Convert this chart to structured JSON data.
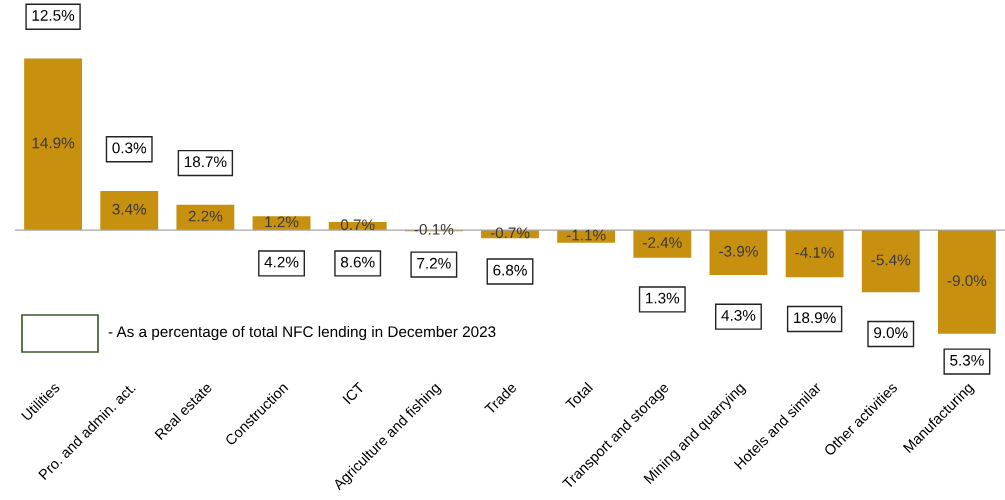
{
  "chart_data": {
    "type": "bar",
    "categories": [
      "Utilities",
      "Pro. and admin. act.",
      "Real estate",
      "Construction",
      "ICT",
      "Agriculture and fishing",
      "Trade",
      "Total",
      "Transport and storage",
      "Mining and quarrying",
      "Hotels and similar",
      "Other activities",
      "Manufacturing"
    ],
    "values": [
      14.9,
      3.4,
      2.2,
      1.2,
      0.7,
      -0.1,
      -0.7,
      -1.1,
      -2.4,
      -3.9,
      -4.1,
      -5.4,
      -9.0
    ],
    "value_labels": [
      "14.9%",
      "3.4%",
      "2.2%",
      "1.2%",
      "0.7%",
      "-0.1%",
      "-0.7%",
      "-1.1%",
      "-2.4%",
      "-3.9%",
      "-4.1%",
      "-5.4%",
      "-9.0%"
    ],
    "color": "#c8900f",
    "grid": false,
    "legend": false,
    "annotations": [
      "12.5%",
      "0.3%",
      "18.7%",
      "4.2%",
      "8.6%",
      "7.2%",
      "6.8%",
      null,
      "1.3%",
      "4.3%",
      "18.9%",
      "9.0%",
      "5.3%",
      "- As a percentage of total NFC lending in December 2023"
    ]
  }
}
